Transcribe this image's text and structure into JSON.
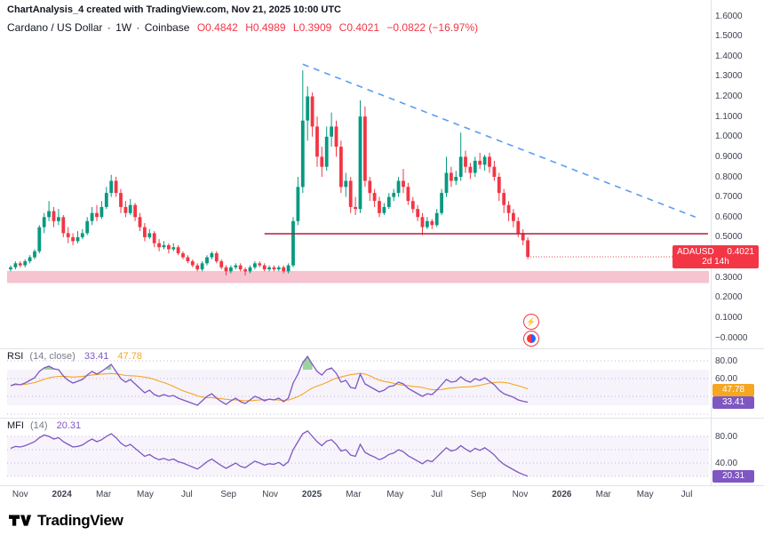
{
  "header": {
    "title": "ChartAnalysis_4 created with TradingView.com, Nov 21, 2025 10:00 UTC"
  },
  "legend": {
    "symbol": "Cardano / US Dollar",
    "sep": "·",
    "interval": "1W",
    "exchange": "Coinbase",
    "o": "O0.4842",
    "h": "H0.4989",
    "l": "L0.3909",
    "c": "C0.4021",
    "change": "−0.0822 (−16.97%)"
  },
  "price_label": {
    "symbol": "ADAUSD",
    "price": "0.4021",
    "countdown": "2d 14h",
    "color": "#f23645"
  },
  "rsi_pane": {
    "title": "RSI",
    "params": "(14, close)",
    "value": "33.41",
    "ma_value": "47.78",
    "axis": [
      {
        "label": "80.00",
        "value": 80
      },
      {
        "label": "60.00",
        "value": 60
      }
    ],
    "badges": [
      {
        "label": "47.78",
        "value": 47.78,
        "bg": "#f5a623"
      },
      {
        "label": "33.41",
        "value": 33.41,
        "bg": "#7e57c2"
      }
    ]
  },
  "mfi_pane": {
    "title": "MFI",
    "params": "(14)",
    "value": "20.31",
    "axis": [
      {
        "label": "80.00",
        "value": 80
      },
      {
        "label": "40.00",
        "value": 40
      }
    ],
    "badge": {
      "label": "20.31",
      "value": 20.31,
      "bg": "#7e57c2"
    }
  },
  "icons": {
    "lightning_badge": "⚡"
  },
  "logo": {
    "text": "TradingView"
  },
  "colors": {
    "up": "#089981",
    "down": "#f23645",
    "rsi": "#7e57c2",
    "rsi_ma": "#f5a623",
    "mfi": "#7e57c2",
    "trendline": "#5b9cf6",
    "hline": "#b01e3e",
    "band": "#f6c3d0",
    "level_dots": "#b6a1e0",
    "separator": "#e0e3eb",
    "overbought_fill": "#4caf50"
  },
  "chart_data": {
    "type": "candlestick",
    "title": "Cardano / US Dollar · 1W · Coinbase",
    "symbol": "ADAUSD",
    "interval": "1W",
    "exchange": "Coinbase",
    "last_bar": {
      "open": 0.4842,
      "high": 0.4989,
      "low": 0.3909,
      "close": 0.4021,
      "change": -0.0822,
      "change_pct": -16.97
    },
    "price_range": [
      0.0,
      1.6
    ],
    "price_axis_labels": [
      "1.6000",
      "1.5000",
      "1.4000",
      "1.3000",
      "1.2000",
      "1.1000",
      "1.0000",
      "0.9000",
      "0.8000",
      "0.7000",
      "0.6000",
      "0.5000",
      "0.4000",
      "0.3000",
      "0.2000",
      "0.1000",
      "−0.0000"
    ],
    "time_ticks": [
      {
        "label": "Nov",
        "index": 2,
        "bold": false
      },
      {
        "label": "2024",
        "index": 10.7,
        "bold": true
      },
      {
        "label": "Mar",
        "index": 19.4,
        "bold": false
      },
      {
        "label": "May",
        "index": 28.1,
        "bold": false
      },
      {
        "label": "Jul",
        "index": 36.8,
        "bold": false
      },
      {
        "label": "Sep",
        "index": 45.5,
        "bold": false
      },
      {
        "label": "Nov",
        "index": 54.2,
        "bold": false
      },
      {
        "label": "2025",
        "index": 62.9,
        "bold": true
      },
      {
        "label": "Mar",
        "index": 71.6,
        "bold": false
      },
      {
        "label": "May",
        "index": 80.3,
        "bold": false
      },
      {
        "label": "Jul",
        "index": 89,
        "bold": false
      },
      {
        "label": "Sep",
        "index": 97.7,
        "bold": false
      },
      {
        "label": "Nov",
        "index": 106.4,
        "bold": false
      },
      {
        "label": "2026",
        "index": 115.1,
        "bold": true
      },
      {
        "label": "Mar",
        "index": 123.8,
        "bold": false
      },
      {
        "label": "May",
        "index": 132.5,
        "bold": false
      },
      {
        "label": "Jul",
        "index": 141.2,
        "bold": false
      }
    ],
    "ohlc": [
      [
        0.34,
        0.36,
        0.33,
        0.35
      ],
      [
        0.35,
        0.38,
        0.34,
        0.37
      ],
      [
        0.37,
        0.38,
        0.35,
        0.36
      ],
      [
        0.36,
        0.39,
        0.35,
        0.38
      ],
      [
        0.38,
        0.41,
        0.37,
        0.4
      ],
      [
        0.4,
        0.44,
        0.39,
        0.43
      ],
      [
        0.43,
        0.56,
        0.42,
        0.55
      ],
      [
        0.55,
        0.62,
        0.52,
        0.6
      ],
      [
        0.6,
        0.68,
        0.58,
        0.63
      ],
      [
        0.63,
        0.65,
        0.55,
        0.58
      ],
      [
        0.58,
        0.64,
        0.56,
        0.6
      ],
      [
        0.6,
        0.61,
        0.5,
        0.52
      ],
      [
        0.52,
        0.55,
        0.47,
        0.5
      ],
      [
        0.5,
        0.52,
        0.46,
        0.48
      ],
      [
        0.48,
        0.53,
        0.47,
        0.5
      ],
      [
        0.5,
        0.54,
        0.49,
        0.52
      ],
      [
        0.52,
        0.6,
        0.51,
        0.58
      ],
      [
        0.58,
        0.65,
        0.56,
        0.62
      ],
      [
        0.62,
        0.66,
        0.58,
        0.6
      ],
      [
        0.6,
        0.68,
        0.59,
        0.65
      ],
      [
        0.65,
        0.75,
        0.64,
        0.72
      ],
      [
        0.72,
        0.81,
        0.7,
        0.78
      ],
      [
        0.78,
        0.8,
        0.7,
        0.72
      ],
      [
        0.72,
        0.74,
        0.62,
        0.65
      ],
      [
        0.65,
        0.68,
        0.6,
        0.62
      ],
      [
        0.62,
        0.69,
        0.61,
        0.66
      ],
      [
        0.66,
        0.67,
        0.58,
        0.6
      ],
      [
        0.6,
        0.62,
        0.53,
        0.55
      ],
      [
        0.55,
        0.57,
        0.48,
        0.5
      ],
      [
        0.5,
        0.54,
        0.49,
        0.52
      ],
      [
        0.52,
        0.53,
        0.45,
        0.47
      ],
      [
        0.47,
        0.49,
        0.43,
        0.45
      ],
      [
        0.45,
        0.48,
        0.44,
        0.46
      ],
      [
        0.46,
        0.47,
        0.42,
        0.44
      ],
      [
        0.44,
        0.47,
        0.43,
        0.45
      ],
      [
        0.45,
        0.46,
        0.41,
        0.42
      ],
      [
        0.42,
        0.43,
        0.39,
        0.4
      ],
      [
        0.4,
        0.41,
        0.37,
        0.38
      ],
      [
        0.38,
        0.39,
        0.35,
        0.36
      ],
      [
        0.36,
        0.37,
        0.33,
        0.34
      ],
      [
        0.34,
        0.38,
        0.33,
        0.37
      ],
      [
        0.37,
        0.41,
        0.36,
        0.4
      ],
      [
        0.4,
        0.43,
        0.39,
        0.42
      ],
      [
        0.42,
        0.43,
        0.37,
        0.38
      ],
      [
        0.38,
        0.39,
        0.34,
        0.35
      ],
      [
        0.35,
        0.36,
        0.31,
        0.33
      ],
      [
        0.33,
        0.36,
        0.32,
        0.35
      ],
      [
        0.35,
        0.37,
        0.34,
        0.36
      ],
      [
        0.36,
        0.37,
        0.33,
        0.34
      ],
      [
        0.34,
        0.35,
        0.31,
        0.33
      ],
      [
        0.33,
        0.36,
        0.32,
        0.35
      ],
      [
        0.35,
        0.38,
        0.34,
        0.37
      ],
      [
        0.37,
        0.38,
        0.35,
        0.36
      ],
      [
        0.36,
        0.37,
        0.33,
        0.34
      ],
      [
        0.34,
        0.36,
        0.33,
        0.35
      ],
      [
        0.35,
        0.36,
        0.33,
        0.34
      ],
      [
        0.34,
        0.36,
        0.33,
        0.35
      ],
      [
        0.35,
        0.36,
        0.32,
        0.33
      ],
      [
        0.33,
        0.37,
        0.32,
        0.36
      ],
      [
        0.36,
        0.6,
        0.35,
        0.58
      ],
      [
        0.58,
        0.8,
        0.56,
        0.75
      ],
      [
        0.75,
        1.33,
        0.72,
        1.08
      ],
      [
        1.08,
        1.25,
        0.98,
        1.2
      ],
      [
        1.2,
        1.22,
        1.0,
        1.05
      ],
      [
        1.05,
        1.1,
        0.85,
        0.9
      ],
      [
        0.9,
        0.95,
        0.8,
        0.85
      ],
      [
        0.85,
        1.05,
        0.83,
        1.0
      ],
      [
        1.0,
        1.12,
        0.95,
        1.05
      ],
      [
        1.05,
        1.08,
        0.9,
        0.95
      ],
      [
        0.95,
        0.98,
        0.72,
        0.75
      ],
      [
        0.75,
        0.82,
        0.7,
        0.78
      ],
      [
        0.78,
        0.8,
        0.62,
        0.65
      ],
      [
        0.65,
        0.7,
        0.61,
        0.64
      ],
      [
        0.64,
        1.18,
        0.62,
        1.1
      ],
      [
        1.1,
        1.15,
        0.75,
        0.78
      ],
      [
        0.78,
        0.8,
        0.68,
        0.72
      ],
      [
        0.72,
        0.74,
        0.65,
        0.68
      ],
      [
        0.68,
        0.7,
        0.6,
        0.62
      ],
      [
        0.62,
        0.67,
        0.61,
        0.65
      ],
      [
        0.65,
        0.72,
        0.64,
        0.7
      ],
      [
        0.7,
        0.74,
        0.68,
        0.72
      ],
      [
        0.72,
        0.8,
        0.7,
        0.78
      ],
      [
        0.78,
        0.84,
        0.72,
        0.75
      ],
      [
        0.75,
        0.77,
        0.66,
        0.68
      ],
      [
        0.68,
        0.7,
        0.62,
        0.64
      ],
      [
        0.64,
        0.66,
        0.58,
        0.6
      ],
      [
        0.6,
        0.62,
        0.51,
        0.55
      ],
      [
        0.55,
        0.6,
        0.54,
        0.58
      ],
      [
        0.58,
        0.59,
        0.54,
        0.56
      ],
      [
        0.56,
        0.64,
        0.55,
        0.62
      ],
      [
        0.62,
        0.74,
        0.61,
        0.72
      ],
      [
        0.72,
        0.9,
        0.7,
        0.82
      ],
      [
        0.82,
        0.85,
        0.75,
        0.78
      ],
      [
        0.78,
        0.83,
        0.76,
        0.8
      ],
      [
        0.8,
        1.02,
        0.78,
        0.9
      ],
      [
        0.9,
        0.93,
        0.82,
        0.85
      ],
      [
        0.85,
        0.87,
        0.79,
        0.82
      ],
      [
        0.82,
        0.9,
        0.8,
        0.88
      ],
      [
        0.88,
        0.92,
        0.84,
        0.86
      ],
      [
        0.86,
        0.91,
        0.83,
        0.9
      ],
      [
        0.9,
        0.92,
        0.82,
        0.85
      ],
      [
        0.85,
        0.88,
        0.78,
        0.8
      ],
      [
        0.8,
        0.82,
        0.68,
        0.72
      ],
      [
        0.72,
        0.74,
        0.62,
        0.66
      ],
      [
        0.66,
        0.68,
        0.58,
        0.62
      ],
      [
        0.62,
        0.64,
        0.55,
        0.58
      ],
      [
        0.58,
        0.6,
        0.5,
        0.52
      ],
      [
        0.52,
        0.54,
        0.46,
        0.484
      ],
      [
        0.4842,
        0.4989,
        0.3909,
        0.4021
      ]
    ],
    "indicators": {
      "rsi": [
        52,
        54,
        53,
        55,
        58,
        61,
        68,
        72,
        74,
        71,
        70,
        63,
        58,
        55,
        57,
        59,
        64,
        68,
        65,
        68,
        72,
        76,
        68,
        60,
        56,
        59,
        54,
        49,
        44,
        47,
        42,
        40,
        42,
        40,
        41,
        38,
        36,
        34,
        32,
        30,
        35,
        40,
        43,
        38,
        34,
        31,
        35,
        38,
        34,
        32,
        36,
        40,
        38,
        35,
        37,
        36,
        38,
        34,
        38,
        55,
        65,
        78,
        85,
        76,
        68,
        64,
        70,
        72,
        66,
        56,
        58,
        50,
        49,
        65,
        54,
        51,
        48,
        45,
        47,
        51,
        52,
        56,
        54,
        49,
        46,
        43,
        40,
        43,
        42,
        47,
        53,
        59,
        56,
        57,
        62,
        58,
        56,
        60,
        58,
        61,
        57,
        53,
        47,
        43,
        41,
        39,
        36,
        34.5,
        33.41
      ],
      "mfi": [
        62,
        65,
        64,
        66,
        69,
        72,
        78,
        82,
        80,
        76,
        78,
        72,
        68,
        64,
        65,
        67,
        72,
        76,
        72,
        75,
        80,
        84,
        78,
        70,
        65,
        68,
        62,
        56,
        50,
        53,
        48,
        45,
        47,
        44,
        46,
        42,
        40,
        37,
        34,
        31,
        36,
        42,
        46,
        41,
        36,
        32,
        36,
        40,
        35,
        33,
        38,
        43,
        40,
        37,
        39,
        38,
        41,
        36,
        42,
        60,
        72,
        84,
        88,
        80,
        72,
        66,
        73,
        75,
        68,
        58,
        60,
        52,
        50,
        68,
        56,
        52,
        49,
        45,
        48,
        53,
        55,
        60,
        57,
        51,
        47,
        43,
        39,
        44,
        42,
        49,
        56,
        63,
        58,
        60,
        66,
        61,
        57,
        62,
        59,
        63,
        58,
        52,
        44,
        38,
        34,
        30,
        26,
        23,
        20.31
      ]
    },
    "rsi_levels": [
      80,
      60,
      40,
      20
    ],
    "mfi_levels": [
      80,
      60,
      40,
      20
    ],
    "annotations": {
      "trendline": {
        "from_index": 61,
        "from_price": 1.36,
        "to_index": 143,
        "to_price": 0.6,
        "style": "dashed"
      },
      "hline": {
        "price": 0.517,
        "from_index": 53
      },
      "support_band": {
        "top": 0.332,
        "bottom": 0.272
      },
      "close_line": {
        "price": 0.4021
      }
    }
  }
}
